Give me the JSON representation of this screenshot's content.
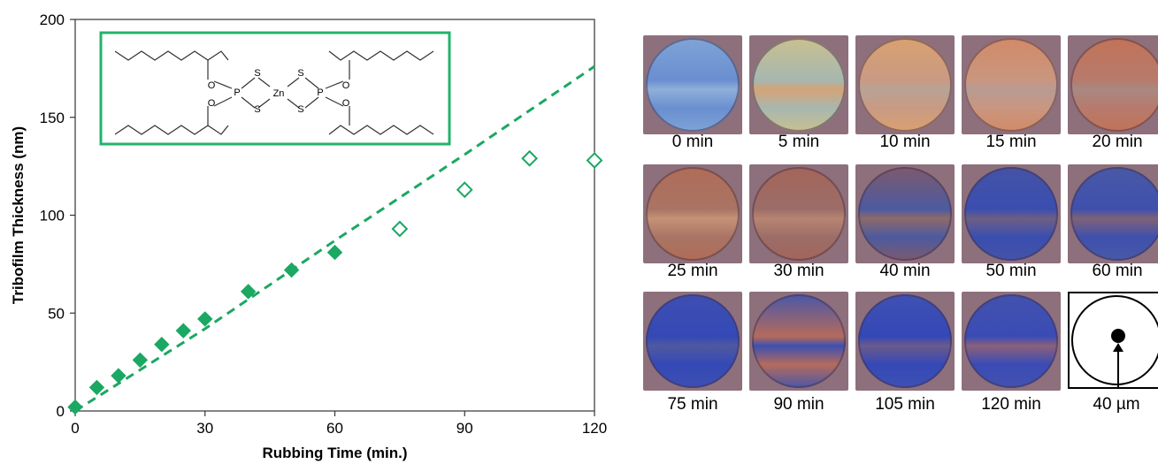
{
  "chart_data": {
    "type": "scatter",
    "xlabel": "Rubbing Time (min.)",
    "ylabel": "Tribofilm Thickness (nm)",
    "xlim": [
      0,
      120
    ],
    "ylim": [
      0,
      200
    ],
    "x_ticks": [
      0,
      30,
      60,
      90,
      120
    ],
    "y_ticks": [
      0,
      50,
      100,
      150,
      200
    ],
    "grid": false,
    "colors": {
      "series": "#1aa862",
      "inset_border": "#22b36b"
    },
    "series": [
      {
        "marker": "filled-diamond",
        "x": [
          0,
          5,
          10,
          15,
          20,
          25,
          30,
          40,
          50,
          60
        ],
        "y": [
          2,
          12,
          18,
          26,
          34,
          41,
          47,
          61,
          72,
          81
        ]
      },
      {
        "marker": "open-diamond",
        "x": [
          75,
          90,
          105,
          120
        ],
        "y": [
          93,
          113,
          129,
          128
        ]
      }
    ],
    "fit_line": {
      "style": "dashed",
      "x": [
        0,
        30,
        60,
        90,
        120
      ],
      "y": [
        0,
        42,
        87,
        131,
        176
      ]
    },
    "inset": {
      "description": "structure-drawing",
      "atoms": [
        "O",
        "P",
        "S",
        "S",
        "Zn",
        "S",
        "S",
        "P",
        "O",
        "O",
        "O"
      ]
    }
  },
  "images": {
    "tiles": [
      {
        "label": "0 min",
        "colors": [
          "#7fa4d6",
          "#6a8ed0",
          "#8fb0d8"
        ]
      },
      {
        "label": "5 min",
        "colors": [
          "#c9c08f",
          "#a7b7b0",
          "#d4a477"
        ]
      },
      {
        "label": "10 min",
        "colors": [
          "#d9a170",
          "#c99a83",
          "#b8a395"
        ]
      },
      {
        "label": "15 min",
        "colors": [
          "#d28a67",
          "#c99680",
          "#b89b92"
        ]
      },
      {
        "label": "20 min",
        "colors": [
          "#c27358",
          "#b77a6c",
          "#a98882"
        ]
      },
      {
        "label": "25 min",
        "colors": [
          "#b06c58",
          "#a97464",
          "#c59277"
        ]
      },
      {
        "label": "30 min",
        "colors": [
          "#a4655a",
          "#9c6d68",
          "#b88572"
        ]
      },
      {
        "label": "40 min",
        "colors": [
          "#7d5a6d",
          "#4c5aa0",
          "#8c6a6a"
        ]
      },
      {
        "label": "50 min",
        "colors": [
          "#4553a6",
          "#3a4eb0",
          "#6d5f84"
        ]
      },
      {
        "label": "60 min",
        "colors": [
          "#4959a6",
          "#3f50ad",
          "#7e6278"
        ]
      },
      {
        "label": "75 min",
        "colors": [
          "#3e4fb2",
          "#3449b6",
          "#4f59a0"
        ]
      },
      {
        "label": "90 min",
        "colors": [
          "#4957a8",
          "#b56b5c",
          "#3e4fb0"
        ]
      },
      {
        "label": "105 min",
        "colors": [
          "#3f51b3",
          "#3448b7",
          "#6a5a8c"
        ]
      },
      {
        "label": "120 min",
        "colors": [
          "#4352ae",
          "#3a4bb5",
          "#8a617a"
        ]
      }
    ],
    "scale_label": "40 µm"
  }
}
